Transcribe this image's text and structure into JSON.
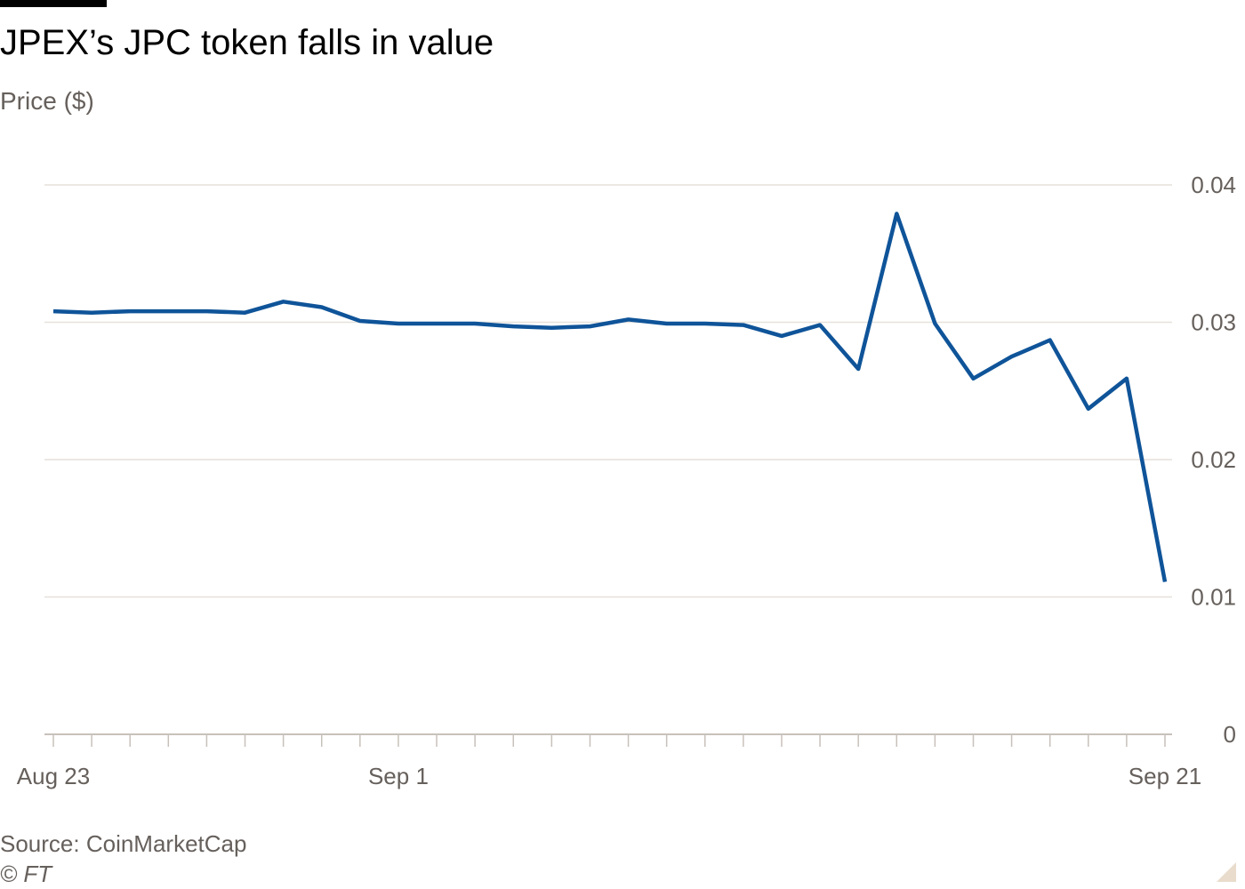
{
  "title": "JPEX’s JPC token falls in value",
  "subtitle": "Price ($)",
  "source": "Source: CoinMarketCap",
  "copyright": "© FT",
  "colors": {
    "line": "#0f5499",
    "grid": "#e6e1dc",
    "axis": "#c8c1bb",
    "text": "#66605c"
  },
  "chart_data": {
    "type": "line",
    "title": "JPEX’s JPC token falls in value",
    "ylabel": "Price ($)",
    "xlabel": "",
    "x_start": "2023-08-23",
    "x_end": "2023-09-21",
    "x": [
      "2023-08-23",
      "2023-08-24",
      "2023-08-25",
      "2023-08-26",
      "2023-08-27",
      "2023-08-28",
      "2023-08-29",
      "2023-08-30",
      "2023-08-31",
      "2023-09-01",
      "2023-09-02",
      "2023-09-03",
      "2023-09-04",
      "2023-09-05",
      "2023-09-06",
      "2023-09-07",
      "2023-09-08",
      "2023-09-09",
      "2023-09-10",
      "2023-09-11",
      "2023-09-12",
      "2023-09-13",
      "2023-09-14",
      "2023-09-15",
      "2023-09-16",
      "2023-09-17",
      "2023-09-18",
      "2023-09-19",
      "2023-09-20",
      "2023-09-21"
    ],
    "series": [
      {
        "values": [
          0.0308,
          0.0307,
          0.0308,
          0.0308,
          0.0308,
          0.0307,
          0.0315,
          0.0311,
          0.0301,
          0.0299,
          0.0299,
          0.0299,
          0.0297,
          0.0296,
          0.0297,
          0.0302,
          0.0299,
          0.0299,
          0.0298,
          0.029,
          0.0298,
          0.0266,
          0.0379,
          0.0299,
          0.0259,
          0.0275,
          0.0287,
          0.0237,
          0.0259,
          0.0111
        ]
      }
    ],
    "ylim": [
      0,
      0.04
    ],
    "yticks": [
      {
        "value": 0,
        "label": "0"
      },
      {
        "value": 0.01,
        "label": "0.01"
      },
      {
        "value": 0.02,
        "label": "0.02"
      },
      {
        "value": 0.03,
        "label": "0.03"
      },
      {
        "value": 0.04,
        "label": "0.04"
      }
    ],
    "xticks": [
      {
        "date": "2023-08-23",
        "label": "Aug 23"
      },
      {
        "date": "2023-09-01",
        "label": "Sep 1"
      },
      {
        "date": "2023-09-21",
        "label": "Sep 21"
      }
    ],
    "grid": true,
    "legend": "none"
  }
}
